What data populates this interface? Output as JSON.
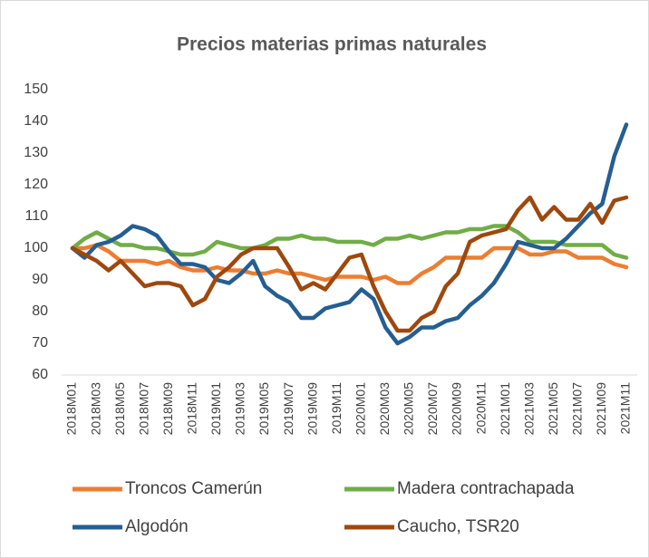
{
  "chart_data": {
    "type": "line",
    "title": "Precios materias primas naturales",
    "categories": [
      "2018M01",
      null,
      "2018M03",
      null,
      "2018M05",
      null,
      "2018M07",
      null,
      "2018M09",
      null,
      "2018M11",
      null,
      "2019M01",
      null,
      "2019M03",
      null,
      "2019M05",
      null,
      "2019M07",
      null,
      "2019M09",
      null,
      "2019M11",
      null,
      "2020M01",
      null,
      "2020M03",
      null,
      "2020M05",
      null,
      "2020M07",
      null,
      "2020M09",
      null,
      "2020M11",
      null,
      "2021M01",
      null,
      "2021M03",
      null,
      "2021M05",
      null,
      "2021M07",
      null,
      "2021M09",
      null,
      "2021M11"
    ],
    "series": [
      {
        "name": "Troncos Camerún",
        "color": "#ed7d31",
        "values": [
          100,
          100,
          101,
          99,
          96,
          96,
          96,
          95,
          96,
          94,
          93,
          93,
          94,
          93,
          93,
          92,
          92,
          93,
          92,
          92,
          91,
          90,
          91,
          91,
          91,
          90,
          91,
          89,
          89,
          92,
          94,
          97,
          97,
          97,
          97,
          100,
          100,
          100,
          98,
          98,
          99,
          99,
          97,
          97,
          97,
          95,
          94
        ]
      },
      {
        "name": "Madera contrachapada",
        "color": "#70ad47",
        "values": [
          100,
          103,
          105,
          103,
          101,
          101,
          100,
          100,
          99,
          98,
          98,
          99,
          102,
          101,
          100,
          100,
          101,
          103,
          103,
          104,
          103,
          103,
          102,
          102,
          102,
          101,
          103,
          103,
          104,
          103,
          104,
          105,
          105,
          106,
          106,
          107,
          107,
          105,
          102,
          102,
          102,
          101,
          101,
          101,
          101,
          98,
          97
        ]
      },
      {
        "name": "Algodón",
        "color": "#255e91",
        "values": [
          100,
          97,
          101,
          102,
          104,
          107,
          106,
          104,
          99,
          95,
          95,
          94,
          90,
          89,
          92,
          96,
          88,
          85,
          83,
          78,
          78,
          81,
          82,
          83,
          87,
          84,
          75,
          70,
          72,
          75,
          75,
          77,
          78,
          82,
          85,
          89,
          95,
          102,
          101,
          100,
          100,
          103,
          107,
          111,
          114,
          129,
          139
        ]
      },
      {
        "name": "Caucho, TSR20",
        "color": "#9e480e",
        "values": [
          100,
          98,
          96,
          93,
          96,
          92,
          88,
          89,
          89,
          88,
          82,
          84,
          91,
          94,
          98,
          100,
          100,
          100,
          94,
          87,
          89,
          87,
          92,
          97,
          98,
          88,
          80,
          74,
          74,
          78,
          80,
          88,
          92,
          102,
          104,
          105,
          106,
          112,
          116,
          109,
          113,
          109,
          109,
          114,
          108,
          115,
          116
        ]
      }
    ],
    "ylim": [
      60,
      150
    ],
    "yticks": [
      60,
      70,
      80,
      90,
      100,
      110,
      120,
      130,
      140,
      150
    ],
    "legend": "bottom",
    "grid": false
  }
}
